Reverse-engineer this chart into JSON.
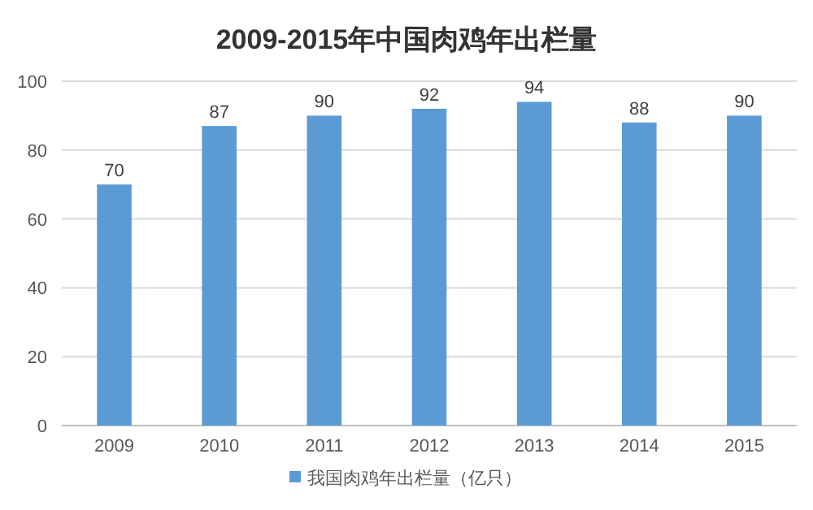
{
  "chart_data": {
    "type": "bar",
    "title": "2009-2015年中国肉鸡年出栏量",
    "categories": [
      "2009",
      "2010",
      "2011",
      "2012",
      "2013",
      "2014",
      "2015"
    ],
    "series": [
      {
        "name": "我国肉鸡年出栏量（亿只）",
        "color": "#5b9bd5",
        "values": [
          70,
          87,
          90,
          92,
          94,
          88,
          90
        ]
      }
    ],
    "ylim": [
      0,
      100
    ],
    "yticks": [
      0,
      20,
      40,
      60,
      80,
      100
    ],
    "grid": "y",
    "legend": "bottom",
    "data_labels": true
  }
}
